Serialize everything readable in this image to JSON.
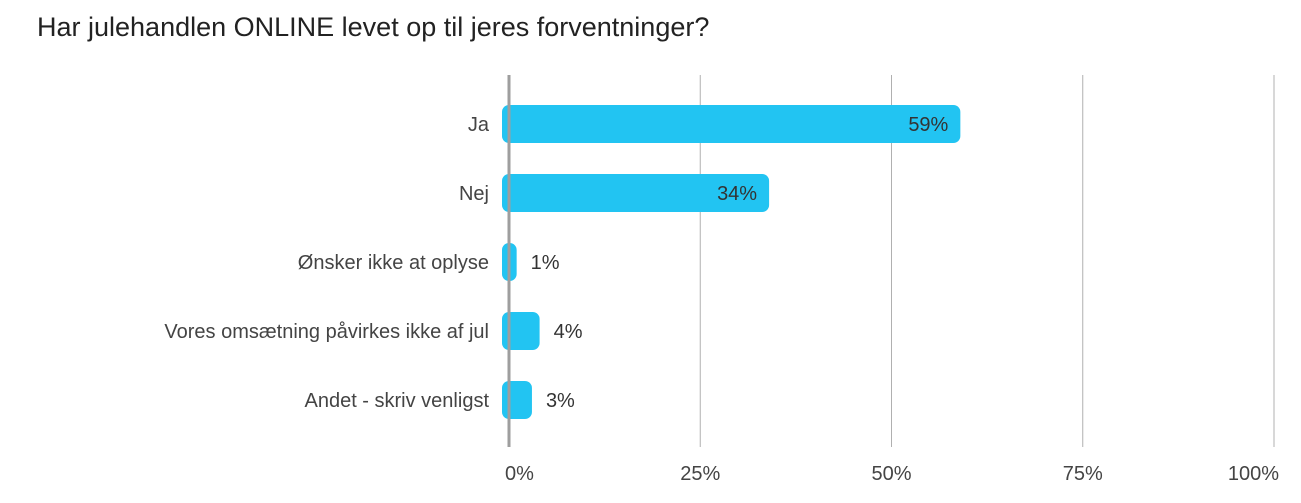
{
  "chart_data": {
    "type": "bar",
    "orientation": "horizontal",
    "title": "Har julehandlen ONLINE levet op til jeres forventninger?",
    "xlabel": "",
    "ylabel": "",
    "categories": [
      "Ja",
      "Nej",
      "Ønsker ikke at oplyse",
      "Vores omsætning påvirkes ikke af jul",
      "Andet - skriv venligst"
    ],
    "values": [
      59,
      34,
      1,
      4,
      3
    ],
    "data_labels": [
      "59%",
      "34%",
      "1%",
      "4%",
      "3%"
    ],
    "xlim": [
      0,
      100
    ],
    "ticks": [
      0,
      25,
      50,
      75,
      100
    ],
    "tick_labels": [
      "0%",
      "25%",
      "50%",
      "75%",
      "100%"
    ],
    "grid": true,
    "legend": "none",
    "colors": {
      "bar": "#22c4f2",
      "grid": "#b0b0b0",
      "axis": "#9e9e9e",
      "text": "#444444",
      "title": "#222222"
    }
  }
}
